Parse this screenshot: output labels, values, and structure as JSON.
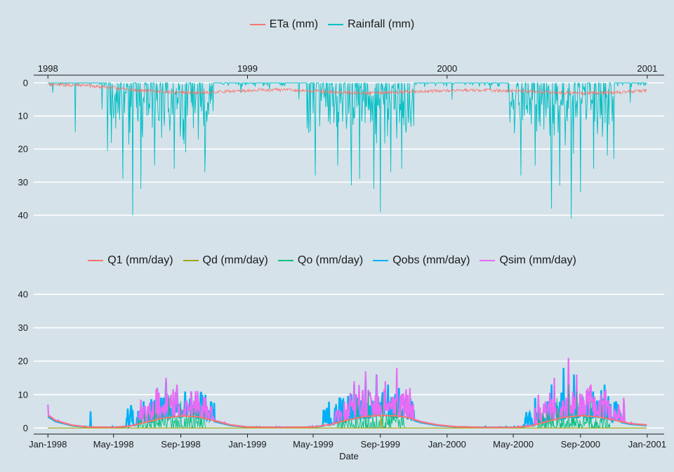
{
  "chart_data": [
    {
      "type": "line",
      "title": "",
      "xlabel": "",
      "ylabel": "",
      "x_axis_position": "top",
      "y_reversed": true,
      "xlim": [
        "1997-12-06",
        "2001-02-01"
      ],
      "ylim": [
        0,
        45
      ],
      "x_ticks": [
        {
          "date": "1998-01-01",
          "label": "1998"
        },
        {
          "date": "1999-01-01",
          "label": "1999"
        },
        {
          "date": "2000-01-01",
          "label": "2000"
        },
        {
          "date": "2001-01-01",
          "label": "2001"
        }
      ],
      "y_ticks": [
        0,
        10,
        20,
        30,
        40
      ],
      "grid": "horizontal",
      "legend": {
        "position": "top",
        "entries": [
          "ETa (mm)",
          "Rainfall (mm)"
        ]
      },
      "series": [
        {
          "name": "ETa (mm)",
          "color": "#f8766d",
          "points": [
            [
              "1998-01-01",
              0.5
            ],
            [
              "1998-03-15",
              0.8
            ],
            [
              "1998-05-01",
              1.5
            ],
            [
              "1998-06-15",
              2.3
            ],
            [
              "1998-08-01",
              2.7
            ],
            [
              "1998-09-15",
              2.9
            ],
            [
              "1998-11-01",
              2.8
            ],
            [
              "1998-12-15",
              2.4
            ],
            [
              "1999-02-01",
              2.1
            ],
            [
              "1999-04-01",
              2.2
            ],
            [
              "1999-06-01",
              2.7
            ],
            [
              "1999-08-01",
              3.0
            ],
            [
              "1999-09-15",
              2.9
            ],
            [
              "1999-11-01",
              2.6
            ],
            [
              "2000-01-01",
              2.3
            ],
            [
              "2000-03-01",
              2.2
            ],
            [
              "2000-05-01",
              2.4
            ],
            [
              "2000-07-01",
              2.8
            ],
            [
              "2000-09-01",
              3.1
            ],
            [
              "2000-10-15",
              3.0
            ],
            [
              "2000-12-01",
              2.6
            ],
            [
              "2000-12-31",
              2.4
            ]
          ]
        },
        {
          "name": "Rainfall (mm)",
          "color": "#00bfc4",
          "wet_seasons": [
            [
              "1998-04-20",
              "1998-10-31"
            ],
            [
              "1999-04-20",
              "1999-10-31"
            ],
            [
              "2000-04-20",
              "2000-10-31"
            ]
          ],
          "peaks": [
            [
              "1998-01-10",
              3
            ],
            [
              "1998-02-20",
              15
            ],
            [
              "1998-04-10",
              8
            ],
            [
              "1998-05-18",
              29
            ],
            [
              "1998-06-05",
              40
            ],
            [
              "1998-06-20",
              32
            ],
            [
              "1998-07-15",
              25
            ],
            [
              "1998-08-20",
              26
            ],
            [
              "1998-09-10",
              21
            ],
            [
              "1998-10-15",
              27
            ],
            [
              "1998-12-20",
              3
            ],
            [
              "1999-02-10",
              2
            ],
            [
              "1999-04-05",
              5
            ],
            [
              "1999-05-05",
              28
            ],
            [
              "1999-06-15",
              25
            ],
            [
              "1999-07-10",
              31
            ],
            [
              "1999-07-25",
              29
            ],
            [
              "1999-08-20",
              32
            ],
            [
              "1999-09-01",
              39
            ],
            [
              "1999-09-20",
              27
            ],
            [
              "1999-10-10",
              26
            ],
            [
              "1999-11-01",
              13
            ],
            [
              "2000-01-10",
              5
            ],
            [
              "2000-03-20",
              2
            ],
            [
              "2000-04-25",
              12
            ],
            [
              "2000-05-15",
              28
            ],
            [
              "2000-06-10",
              25
            ],
            [
              "2000-07-10",
              38
            ],
            [
              "2000-07-25",
              31
            ],
            [
              "2000-08-15",
              41
            ],
            [
              "2000-09-01",
              33
            ],
            [
              "2000-09-25",
              26
            ],
            [
              "2000-10-20",
              22
            ],
            [
              "2000-11-01",
              23
            ],
            [
              "2000-12-01",
              6
            ]
          ]
        }
      ]
    },
    {
      "type": "line",
      "title": "",
      "xlabel": "Date",
      "ylabel": "",
      "xlim": [
        "1997-12-06",
        "2001-02-01"
      ],
      "ylim": [
        -1.8,
        44
      ],
      "x_ticks": [
        {
          "date": "1998-01-01",
          "label": "Jan-1998"
        },
        {
          "date": "1998-05-01",
          "label": "May-1998"
        },
        {
          "date": "1998-09-01",
          "label": "Sep-1998"
        },
        {
          "date": "1999-01-01",
          "label": "Jan-1999"
        },
        {
          "date": "1999-05-01",
          "label": "May-1999"
        },
        {
          "date": "1999-09-01",
          "label": "Sep-1999"
        },
        {
          "date": "2000-01-01",
          "label": "Jan-2000"
        },
        {
          "date": "2000-05-01",
          "label": "May-2000"
        },
        {
          "date": "2000-09-01",
          "label": "Sep-2000"
        },
        {
          "date": "2001-01-01",
          "label": "Jan-2001"
        }
      ],
      "y_ticks": [
        0,
        10,
        20,
        30,
        40
      ],
      "grid": "horizontal",
      "legend": {
        "position": "top",
        "entries": [
          "Q1 (mm/day)",
          "Qd (mm/day)",
          "Qo (mm/day)",
          "Qobs (mm/day)",
          "Qsim (mm/day)"
        ]
      },
      "series": [
        {
          "name": "Q1 (mm/day)",
          "color": "#f8766d",
          "points": [
            [
              "1998-01-01",
              3.8
            ],
            [
              "1998-01-15",
              2.2
            ],
            [
              "1998-02-15",
              0.8
            ],
            [
              "1998-03-15",
              0.3
            ],
            [
              "1998-05-01",
              0.2
            ],
            [
              "1998-06-01",
              0.6
            ],
            [
              "1998-07-01",
              1.8
            ],
            [
              "1998-08-01",
              3.0
            ],
            [
              "1998-09-01",
              3.6
            ],
            [
              "1998-10-01",
              3.4
            ],
            [
              "1998-11-01",
              2.2
            ],
            [
              "1998-12-01",
              0.9
            ],
            [
              "1999-01-01",
              0.3
            ],
            [
              "1999-03-01",
              0.2
            ],
            [
              "1999-05-01",
              0.3
            ],
            [
              "1999-06-01",
              1.0
            ],
            [
              "1999-07-01",
              2.3
            ],
            [
              "1999-08-01",
              3.4
            ],
            [
              "1999-09-01",
              3.8
            ],
            [
              "1999-10-01",
              3.6
            ],
            [
              "1999-10-20",
              3.2
            ],
            [
              "1999-11-15",
              1.8
            ],
            [
              "1999-12-15",
              0.9
            ],
            [
              "2000-01-15",
              0.4
            ],
            [
              "2000-03-01",
              0.2
            ],
            [
              "2000-05-01",
              0.2
            ],
            [
              "2000-06-01",
              0.6
            ],
            [
              "2000-07-01",
              1.9
            ],
            [
              "2000-08-01",
              3.2
            ],
            [
              "2000-09-01",
              3.7
            ],
            [
              "2000-10-01",
              3.4
            ],
            [
              "2000-11-01",
              2.4
            ],
            [
              "2000-12-01",
              1.3
            ],
            [
              "2000-12-31",
              0.9
            ]
          ]
        },
        {
          "name": "Qd (mm/day)",
          "color": "#a3a500",
          "points": [
            [
              "1998-01-01",
              0
            ],
            [
              "1999-09-01",
              0
            ],
            [
              "1999-09-02",
              3.5
            ],
            [
              "1999-09-04",
              0
            ],
            [
              "2000-12-31",
              0
            ]
          ]
        },
        {
          "name": "Qo (mm/day)",
          "color": "#00bf7d",
          "wet_seasons": [
            [
              "1998-06-15",
              "1998-10-15"
            ],
            [
              "1999-06-15",
              "1999-10-15"
            ],
            [
              "2000-06-15",
              "2000-10-25"
            ]
          ],
          "peaks": [
            [
              "1998-07-15",
              7
            ],
            [
              "1998-08-10",
              10
            ],
            [
              "1998-09-01",
              8
            ],
            [
              "1998-09-25",
              6
            ],
            [
              "1999-07-20",
              9
            ],
            [
              "1999-08-10",
              11
            ],
            [
              "1999-09-05",
              9
            ],
            [
              "1999-10-01",
              8
            ],
            [
              "2000-07-20",
              9
            ],
            [
              "2000-08-10",
              13
            ],
            [
              "2000-08-25",
              11
            ],
            [
              "2000-09-20",
              8
            ],
            [
              "2000-10-10",
              7
            ]
          ]
        },
        {
          "name": "Qobs (mm/day)",
          "color": "#00b0f6",
          "wet_seasons": [
            [
              "1998-05-25",
              "1998-11-01"
            ],
            [
              "1999-05-20",
              "1999-11-01"
            ],
            [
              "2000-05-20",
              "2000-11-15"
            ]
          ],
          "peaks": [
            [
              "1998-03-20",
              5
            ],
            [
              "1998-06-25",
              8
            ],
            [
              "1998-07-20",
              12
            ],
            [
              "1998-08-05",
              14
            ],
            [
              "1998-08-25",
              12
            ],
            [
              "1998-09-20",
              11
            ],
            [
              "1998-10-10",
              10
            ],
            [
              "1999-06-20",
              9
            ],
            [
              "1999-07-15",
              13
            ],
            [
              "1999-08-05",
              15
            ],
            [
              "1999-08-25",
              16
            ],
            [
              "1999-09-15",
              13
            ],
            [
              "1999-10-05",
              12
            ],
            [
              "2000-06-10",
              9
            ],
            [
              "2000-07-10",
              13
            ],
            [
              "2000-08-01",
              18
            ],
            [
              "2000-08-20",
              16
            ],
            [
              "2000-09-15",
              11
            ],
            [
              "2000-10-15",
              13
            ],
            [
              "2000-11-05",
              8
            ]
          ]
        },
        {
          "name": "Qsim (mm/day)",
          "color": "#e76bf3",
          "wet_seasons": [
            [
              "1998-06-15",
              "1998-10-31"
            ],
            [
              "1999-06-10",
              "1999-10-31"
            ],
            [
              "2000-06-10",
              "2000-11-20"
            ]
          ],
          "peaks": [
            [
              "1998-01-01",
              7
            ],
            [
              "1998-07-20",
              12
            ],
            [
              "1998-08-05",
              15
            ],
            [
              "1998-08-25",
              13
            ],
            [
              "1998-09-20",
              11
            ],
            [
              "1998-10-15",
              9
            ],
            [
              "1999-07-15",
              14
            ],
            [
              "1999-08-05",
              17
            ],
            [
              "1999-08-25",
              16
            ],
            [
              "1999-09-10",
              14
            ],
            [
              "1999-10-01",
              18
            ],
            [
              "2000-07-15",
              15
            ],
            [
              "2000-08-10",
              21
            ],
            [
              "2000-08-25",
              16
            ],
            [
              "2000-09-20",
              13
            ],
            [
              "2000-10-15",
              11
            ],
            [
              "2000-11-10",
              7
            ]
          ]
        }
      ]
    }
  ]
}
